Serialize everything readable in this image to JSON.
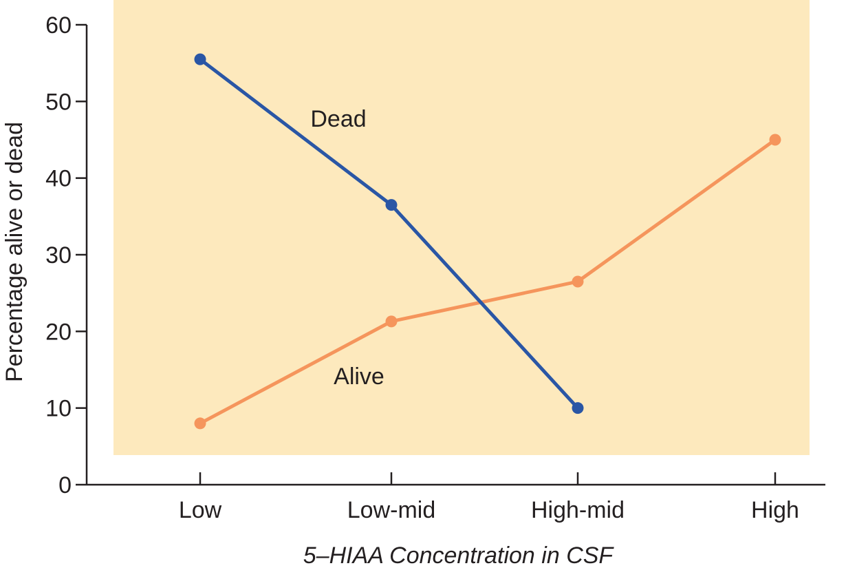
{
  "chart_data": {
    "type": "line",
    "title": "",
    "xlabel": "5–HIAA Concentration in CSF",
    "ylabel": "Percentage alive or dead",
    "categories": [
      "Low",
      "Low-mid",
      "High-mid",
      "High"
    ],
    "ylim": [
      0,
      60
    ],
    "yticks": [
      0,
      10,
      20,
      30,
      40,
      50,
      60
    ],
    "grid": false,
    "plot_background": "#fde9bd",
    "series": [
      {
        "name": "Dead",
        "color": "#2a56a5",
        "values": [
          55.5,
          36.5,
          10,
          null
        ]
      },
      {
        "name": "Alive",
        "color": "#f5955c",
        "values": [
          8,
          21.3,
          26.5,
          45
        ]
      }
    ]
  }
}
